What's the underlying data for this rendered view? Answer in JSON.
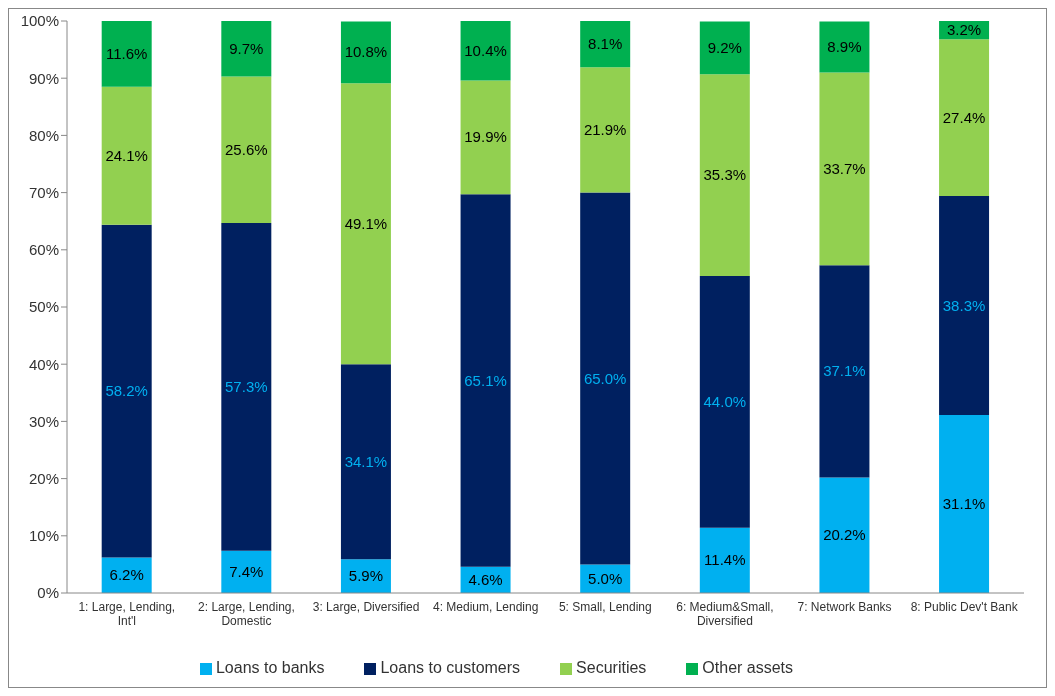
{
  "chart_data": {
    "type": "bar",
    "stacked": true,
    "categories": [
      "1: Large, Lending, Int'l",
      "2: Large, Lending, Domestic",
      "3: Large, Diversified",
      "4: Medium, Lending",
      "5: Small, Lending",
      "6: Medium&Small, Diversified",
      "7: Network Banks",
      "8: Public Dev't Bank"
    ],
    "series": [
      {
        "name": "Loans to banks",
        "color": "#00b0f0",
        "values": [
          6.2,
          7.4,
          5.9,
          4.6,
          5.0,
          11.4,
          20.2,
          31.1
        ],
        "value_labels": [
          "6.2%",
          "7.4%",
          "5.9%",
          "4.6%",
          "5.0%",
          "11.4%",
          "20.2%",
          "31.1%"
        ]
      },
      {
        "name": "Loans to customers",
        "color": "#002060",
        "values": [
          58.2,
          57.3,
          34.1,
          65.1,
          65.0,
          44.0,
          37.1,
          38.3
        ],
        "value_labels": [
          "58.2%",
          "57.3%",
          "34.1%",
          "65.1%",
          "65.0%",
          "44.0%",
          "37.1%",
          "38.3%"
        ]
      },
      {
        "name": "Securities",
        "color": "#92d050",
        "values": [
          24.1,
          25.6,
          49.1,
          19.9,
          21.9,
          35.3,
          33.7,
          27.4
        ],
        "value_labels": [
          "24.1%",
          "25.6%",
          "49.1%",
          "19.9%",
          "21.9%",
          "35.3%",
          "33.7%",
          "27.4%"
        ]
      },
      {
        "name": "Other assets",
        "color": "#00b050",
        "values": [
          11.6,
          9.7,
          10.8,
          10.4,
          8.1,
          9.2,
          8.9,
          3.2
        ],
        "value_labels": [
          "11.6%",
          "9.7%",
          "10.8%",
          "10.4%",
          "8.1%",
          "9.2%",
          "8.9%",
          "3.2%"
        ]
      }
    ],
    "ylim": [
      0,
      100
    ],
    "yticks": [
      {
        "value": 0,
        "label": "0%"
      },
      {
        "value": 10,
        "label": "10%"
      },
      {
        "value": 20,
        "label": "20%"
      },
      {
        "value": 30,
        "label": "30%"
      },
      {
        "value": 40,
        "label": "40%"
      },
      {
        "value": 50,
        "label": "50%"
      },
      {
        "value": 60,
        "label": "60%"
      },
      {
        "value": 70,
        "label": "70%"
      },
      {
        "value": 80,
        "label": "80%"
      },
      {
        "value": 90,
        "label": "90%"
      },
      {
        "value": 100,
        "label": "100%"
      }
    ],
    "grid": false,
    "legend": "bottom"
  }
}
